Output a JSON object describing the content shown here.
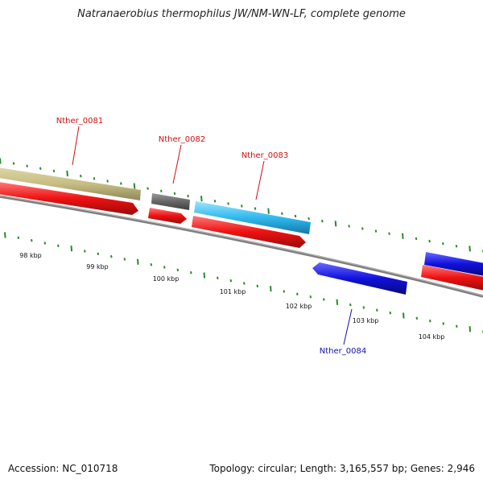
{
  "title": "Natranaerobius thermophilus JW/NM-WN-LF, complete genome",
  "footer": {
    "accession": "Accession: NC_010718",
    "summary": "Topology: circular; Length: 3,165,557 bp; Genes: 2,946"
  },
  "colors": {
    "backbone": "#7a7a7a",
    "ticks": "#2a8a2a",
    "cds": "#ee1111",
    "gene_label_forward": "#cc1111",
    "gene_label_reverse": "#1111aa"
  },
  "scale_labels": [
    "98 kbp",
    "99 kbp",
    "100 kbp",
    "101 kbp",
    "102 kbp",
    "103 kbp",
    "104 kbp"
  ],
  "features": [
    {
      "id": "feat-olive",
      "strand": "+",
      "color": "#c8c088"
    },
    {
      "id": "feat-gray",
      "strand": "+",
      "color": "#666666"
    },
    {
      "id": "feat-cyan",
      "strand": "+",
      "color": "#33bbee"
    },
    {
      "id": "feat-blue-reverse",
      "strand": "-",
      "color": "#1111dd"
    },
    {
      "id": "feat-blue-right",
      "strand": "+",
      "color": "#1111dd"
    },
    {
      "id": "cds-1",
      "strand": "+",
      "color": "#ee1111"
    },
    {
      "id": "cds-2",
      "strand": "+",
      "color": "#ee1111"
    },
    {
      "id": "cds-3",
      "strand": "+",
      "color": "#ee1111"
    },
    {
      "id": "cds-4",
      "strand": "+",
      "color": "#ee1111"
    }
  ],
  "gene_labels": [
    "Nther_0081",
    "Nther_0082",
    "Nther_0083",
    "Nther_0084"
  ]
}
